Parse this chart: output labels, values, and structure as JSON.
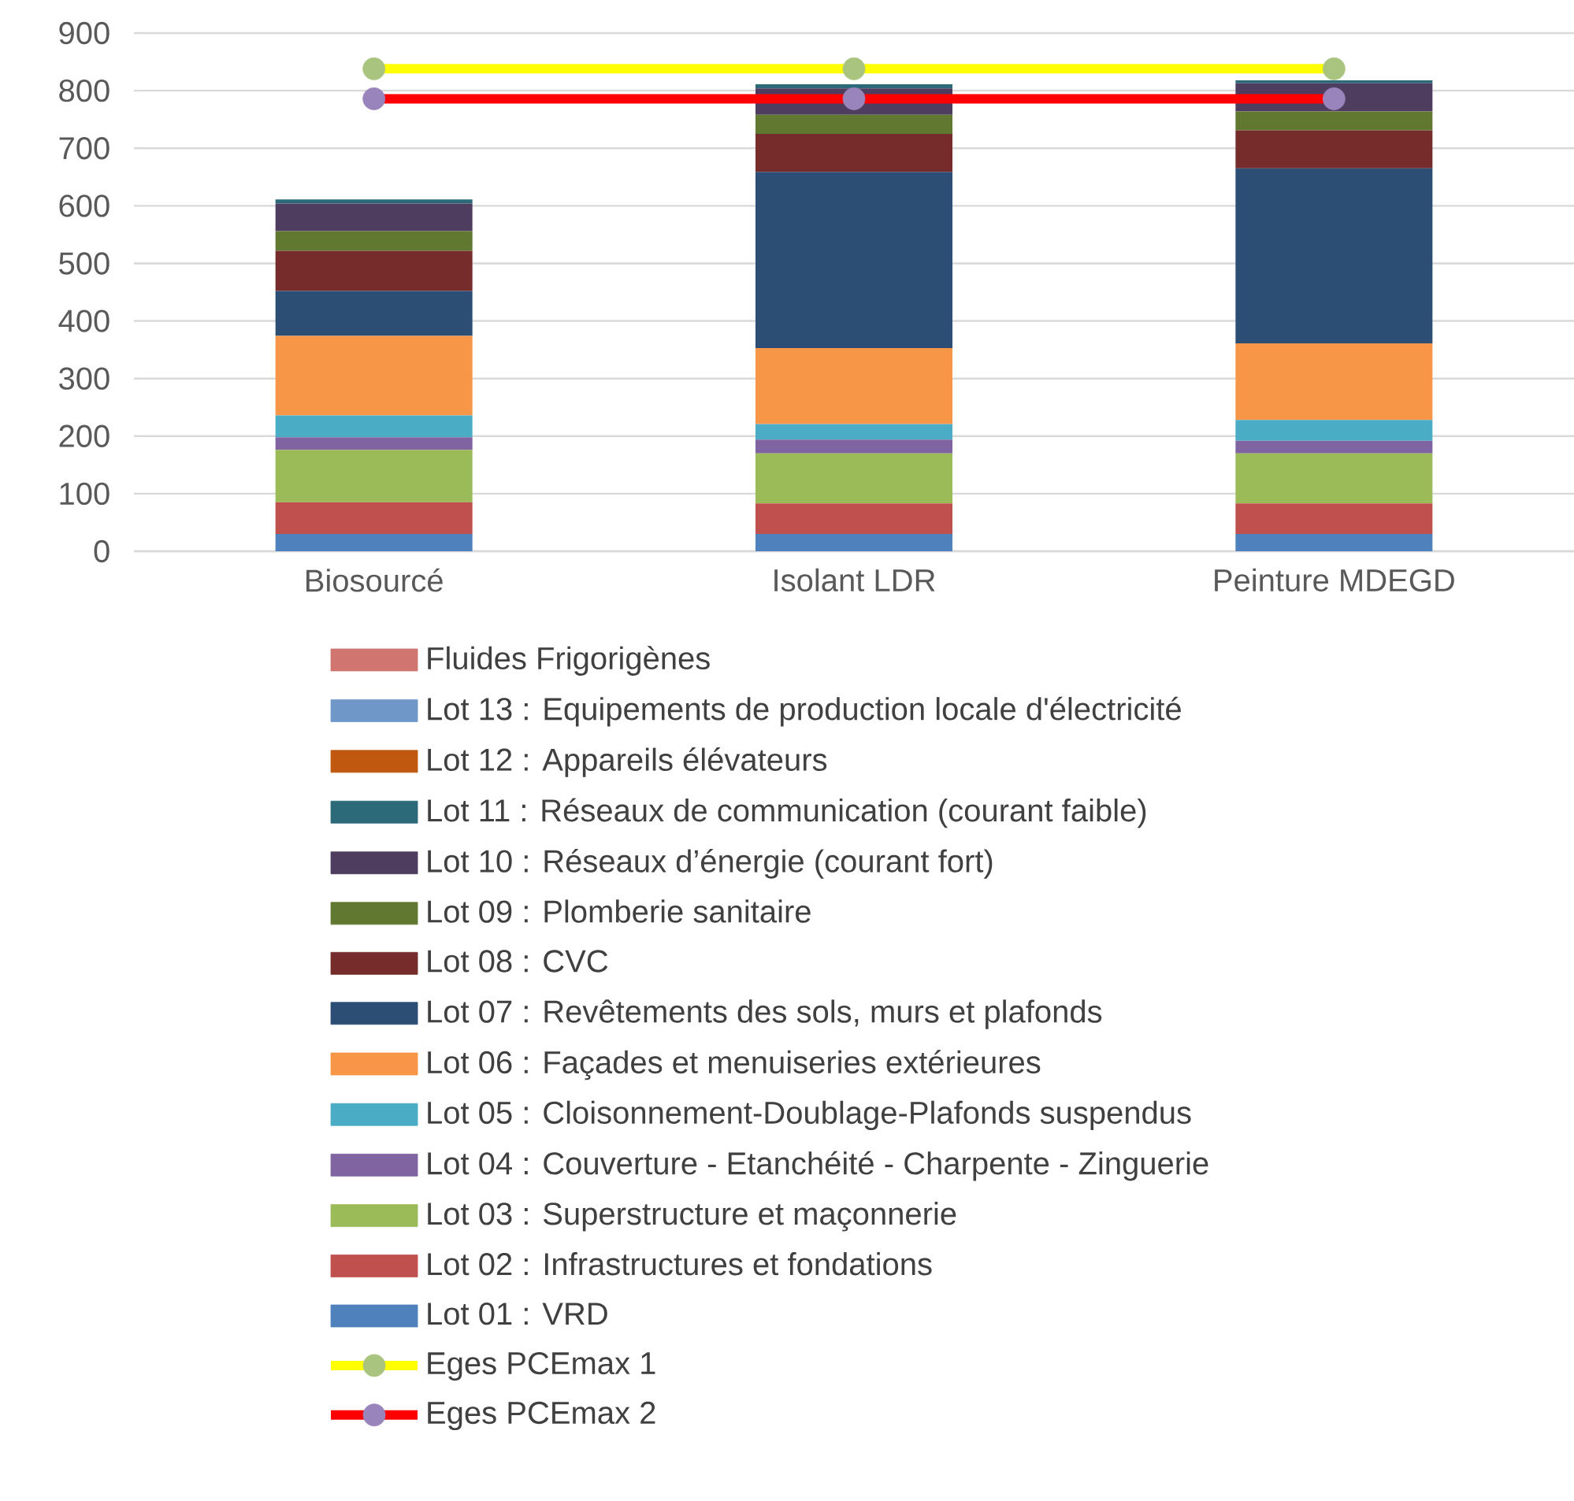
{
  "chart_data": {
    "type": "bar",
    "stacked": true,
    "categories": [
      "Biosourcé",
      "Isolant LDR",
      "Peinture MDEGD"
    ],
    "ylim": [
      0,
      900
    ],
    "yticks": [
      0,
      100,
      200,
      300,
      400,
      500,
      600,
      700,
      800,
      900
    ],
    "grid": "y",
    "legend": "bottom",
    "series": [
      {
        "name": "Lot 01 : VRD",
        "color": "#4f81bd",
        "values": [
          30,
          30,
          30
        ]
      },
      {
        "name": "Lot 02 : Infrastructures et fondations",
        "color": "#c0504d",
        "values": [
          55,
          53,
          53
        ]
      },
      {
        "name": "Lot 03 : Superstructure et maçonnerie",
        "color": "#9bbb59",
        "values": [
          91,
          87,
          87
        ]
      },
      {
        "name": "Lot 04 : Couverture - Etanchéité - Charpente - Zinguerie",
        "color": "#8064a2",
        "values": [
          22,
          24,
          22
        ]
      },
      {
        "name": "Lot 05 : Cloisonnement-Doublage-Plafonds suspendus",
        "color": "#4bacc6",
        "values": [
          38,
          27,
          36
        ]
      },
      {
        "name": "Lot 06 : Façades et menuiseries extérieures",
        "color": "#f79646",
        "values": [
          138,
          132,
          133
        ]
      },
      {
        "name": "Lot 07 : Revêtements des sols, murs et plafonds",
        "color": "#2c4d74",
        "values": [
          78,
          306,
          304
        ]
      },
      {
        "name": "Lot 08 : CVC",
        "color": "#772c2c",
        "values": [
          70,
          66,
          66
        ]
      },
      {
        "name": "Lot 09 : Plomberie sanitaire",
        "color": "#617830",
        "values": [
          34,
          33,
          33
        ]
      },
      {
        "name": "Lot 10 : Réseaux d’énergie (courant fort)",
        "color": "#4f3d5f",
        "values": [
          48,
          46,
          49
        ]
      },
      {
        "name": "Lot 11 : Réseaux de communication (courant faible)",
        "color": "#2c6a7a",
        "values": [
          7,
          7,
          5
        ]
      },
      {
        "name": "Lot 12 : Appareils élévateurs",
        "color": "#c0590f",
        "values": [
          0,
          0,
          0
        ]
      },
      {
        "name": "Lot 13 : Equipements de production locale d'électricité",
        "color": "#6f98c9",
        "values": [
          0,
          0,
          0
        ]
      },
      {
        "name": "Fluides Frigorigènes",
        "color": "#d07570",
        "values": [
          0,
          0,
          0
        ]
      },
      {
        "name": "Eges PCEmax 1",
        "type": "line",
        "color": "#ffff00",
        "colors": [
          "#a9c47f",
          "#a9c47f",
          "#a9c47f"
        ],
        "marker": "circle",
        "values": [
          838,
          838,
          838
        ]
      },
      {
        "name": "Eges PCEmax 2",
        "type": "line",
        "color": "#ff0000",
        "colors": [
          "#9a84bc",
          "#9a84bc",
          "#9a84bc"
        ],
        "marker": "circle",
        "values": [
          786,
          786,
          786
        ]
      }
    ]
  }
}
